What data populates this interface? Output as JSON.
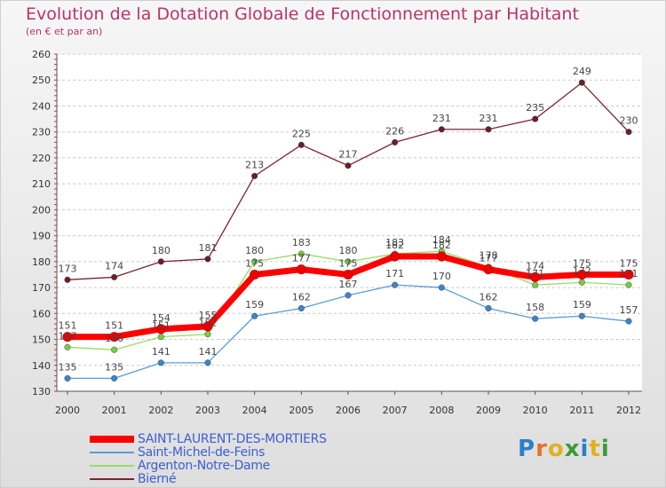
{
  "header": {
    "title": "Evolution de la Dotation Globale de Fonctionnement par Habitant",
    "subtitle": "(en € et par an)"
  },
  "logo": {
    "text": "Proxiti",
    "colors": [
      "#2a7fc9",
      "#e8702a",
      "#e0b020",
      "#3a9a3a",
      "#2a7fc9",
      "#e0b020",
      "#3a9a3a"
    ]
  },
  "chart_data": {
    "type": "line",
    "title": "Evolution de la Dotation Globale de Fonctionnement par Habitant",
    "subtitle": "(en € et par an)",
    "xlabel": "",
    "ylabel": "",
    "categories": [
      "2000",
      "2001",
      "2002",
      "2003",
      "2004",
      "2005",
      "2006",
      "2007",
      "2008",
      "2009",
      "2010",
      "2011",
      "2012"
    ],
    "ylim": [
      130,
      260
    ],
    "yticks": [
      130,
      140,
      150,
      160,
      170,
      180,
      190,
      200,
      210,
      220,
      230,
      240,
      250,
      260
    ],
    "grid": "horizontal dashed",
    "legend_position": "bottom-left",
    "series": [
      {
        "name": "Bierné",
        "color": "#7a2530",
        "marker": "#6a1f28",
        "values": [
          173,
          174,
          180,
          181,
          213,
          225,
          217,
          226,
          231,
          231,
          235,
          249,
          230
        ],
        "labels": [
          "173",
          "174",
          "180",
          "181",
          "213",
          "225",
          "217",
          "226",
          "231",
          "231",
          "235",
          "249",
          "230"
        ]
      },
      {
        "name": "Argenton-Notre-Dame",
        "color": "#99dd66",
        "marker": "#77cc44",
        "values": [
          147,
          146,
          151,
          152,
          180,
          183,
          180,
          183,
          184,
          178,
          171,
          172,
          171
        ],
        "labels": [
          "147",
          "146",
          "151",
          "152",
          "180",
          "183",
          "180",
          "183",
          "184",
          "178",
          "171",
          "172",
          "171"
        ]
      },
      {
        "name": "Saint-Michel-de-Feins",
        "color": "#5b9bd5",
        "marker": "#3a86cc",
        "values": [
          135,
          135,
          141,
          141,
          159,
          162,
          167,
          171,
          170,
          162,
          158,
          159,
          157
        ],
        "labels": [
          "135",
          "135",
          "141",
          "141",
          "159",
          "162",
          "167",
          "171",
          "170",
          "162",
          "158",
          "159",
          "157"
        ]
      },
      {
        "name": "SAINT-LAURENT-DES-MORTIERS",
        "color": "#ff0000",
        "marker": "#ee0000",
        "values": [
          151,
          151,
          154,
          155,
          175,
          177,
          175,
          182,
          182,
          177,
          174,
          175,
          175
        ],
        "labels": [
          "151",
          "151",
          "154",
          "155",
          "175",
          "177",
          "175",
          "182",
          "182",
          "177",
          "174",
          "175",
          "175"
        ]
      }
    ],
    "legend": [
      "SAINT-LAURENT-DES-MORTIERS",
      "Saint-Michel-de-Feins",
      "Argenton-Notre-Dame",
      "Bierné"
    ]
  }
}
